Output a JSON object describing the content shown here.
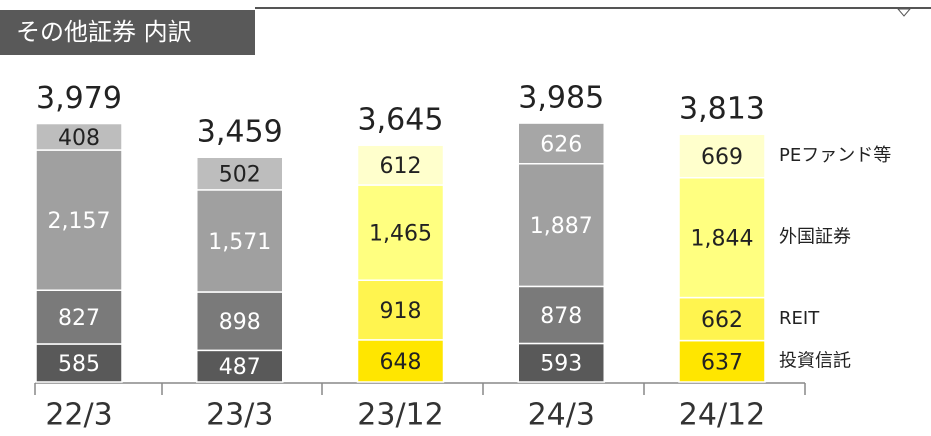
{
  "chart_data": {
    "type": "stacked_bar",
    "title": "その他証券 内訳",
    "categories": [
      "22/3",
      "23/3",
      "23/12",
      "24/3",
      "24/12"
    ],
    "totals": [
      3979,
      3459,
      3645,
      3985,
      3813
    ],
    "total_labels": [
      "3,979",
      "3,459",
      "3,645",
      "3,985",
      "3,813"
    ],
    "series": [
      {
        "name": "投資信託",
        "values": [
          585,
          487,
          648,
          593,
          637
        ],
        "value_labels": [
          "585",
          "487",
          "648",
          "593",
          "637"
        ],
        "colors": [
          "#595959",
          "#595959",
          "#ffe600",
          "#595959",
          "#ffe600"
        ]
      },
      {
        "name": "REIT",
        "values": [
          827,
          898,
          918,
          878,
          662
        ],
        "value_labels": [
          "827",
          "898",
          "918",
          "878",
          "662"
        ],
        "colors": [
          "#7a7a7a",
          "#7a7a7a",
          "#fff44f",
          "#7a7a7a",
          "#fff44f"
        ]
      },
      {
        "name": "外国証券",
        "values": [
          2157,
          1571,
          1465,
          1887,
          1844
        ],
        "value_labels": [
          "2,157",
          "1,571",
          "1,465",
          "1,887",
          "1,844"
        ],
        "colors": [
          "#a0a0a0",
          "#a0a0a0",
          "#ffff80",
          "#a0a0a0",
          "#ffff80"
        ]
      },
      {
        "name": "PEファンド等",
        "values": [
          408,
          502,
          612,
          626,
          669
        ],
        "value_labels": [
          "408",
          "502",
          "612",
          "626",
          "669"
        ],
        "colors": [
          "#bdbdbd",
          "#bdbdbd",
          "#ffffcc",
          "#a6a6a6",
          "#ffffcc"
        ]
      }
    ]
  }
}
